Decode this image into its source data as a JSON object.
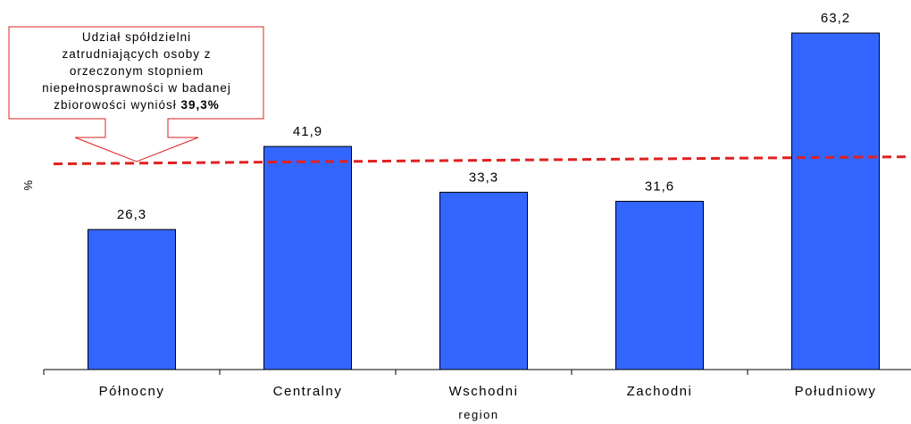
{
  "chart_data": {
    "type": "bar",
    "title": "",
    "xlabel": "region",
    "ylabel": "%",
    "categories": [
      "Północny",
      "Centralny",
      "Wschodni",
      "Zachodni",
      "Południowy"
    ],
    "values": [
      26.3,
      41.9,
      33.3,
      31.6,
      63.2
    ],
    "value_labels": [
      "26,3",
      "41,9",
      "33,3",
      "31,6",
      "63,2"
    ],
    "ylim": [
      0,
      70
    ],
    "bar_color": "#3366FF",
    "reference_line": {
      "value": 39.3,
      "color": "#E02020",
      "style": "dashed"
    },
    "annotation": {
      "lines": [
        "Udział spółdzielni",
        "zatrudniających osoby z",
        "orzeczonym stopniem",
        "niepełnosprawności w badanej"
      ],
      "last_line_text": "zbiorowości wyniósł",
      "last_line_bold": "39,3%",
      "border_color": "#E02020"
    },
    "grid": false,
    "legend": "none"
  }
}
